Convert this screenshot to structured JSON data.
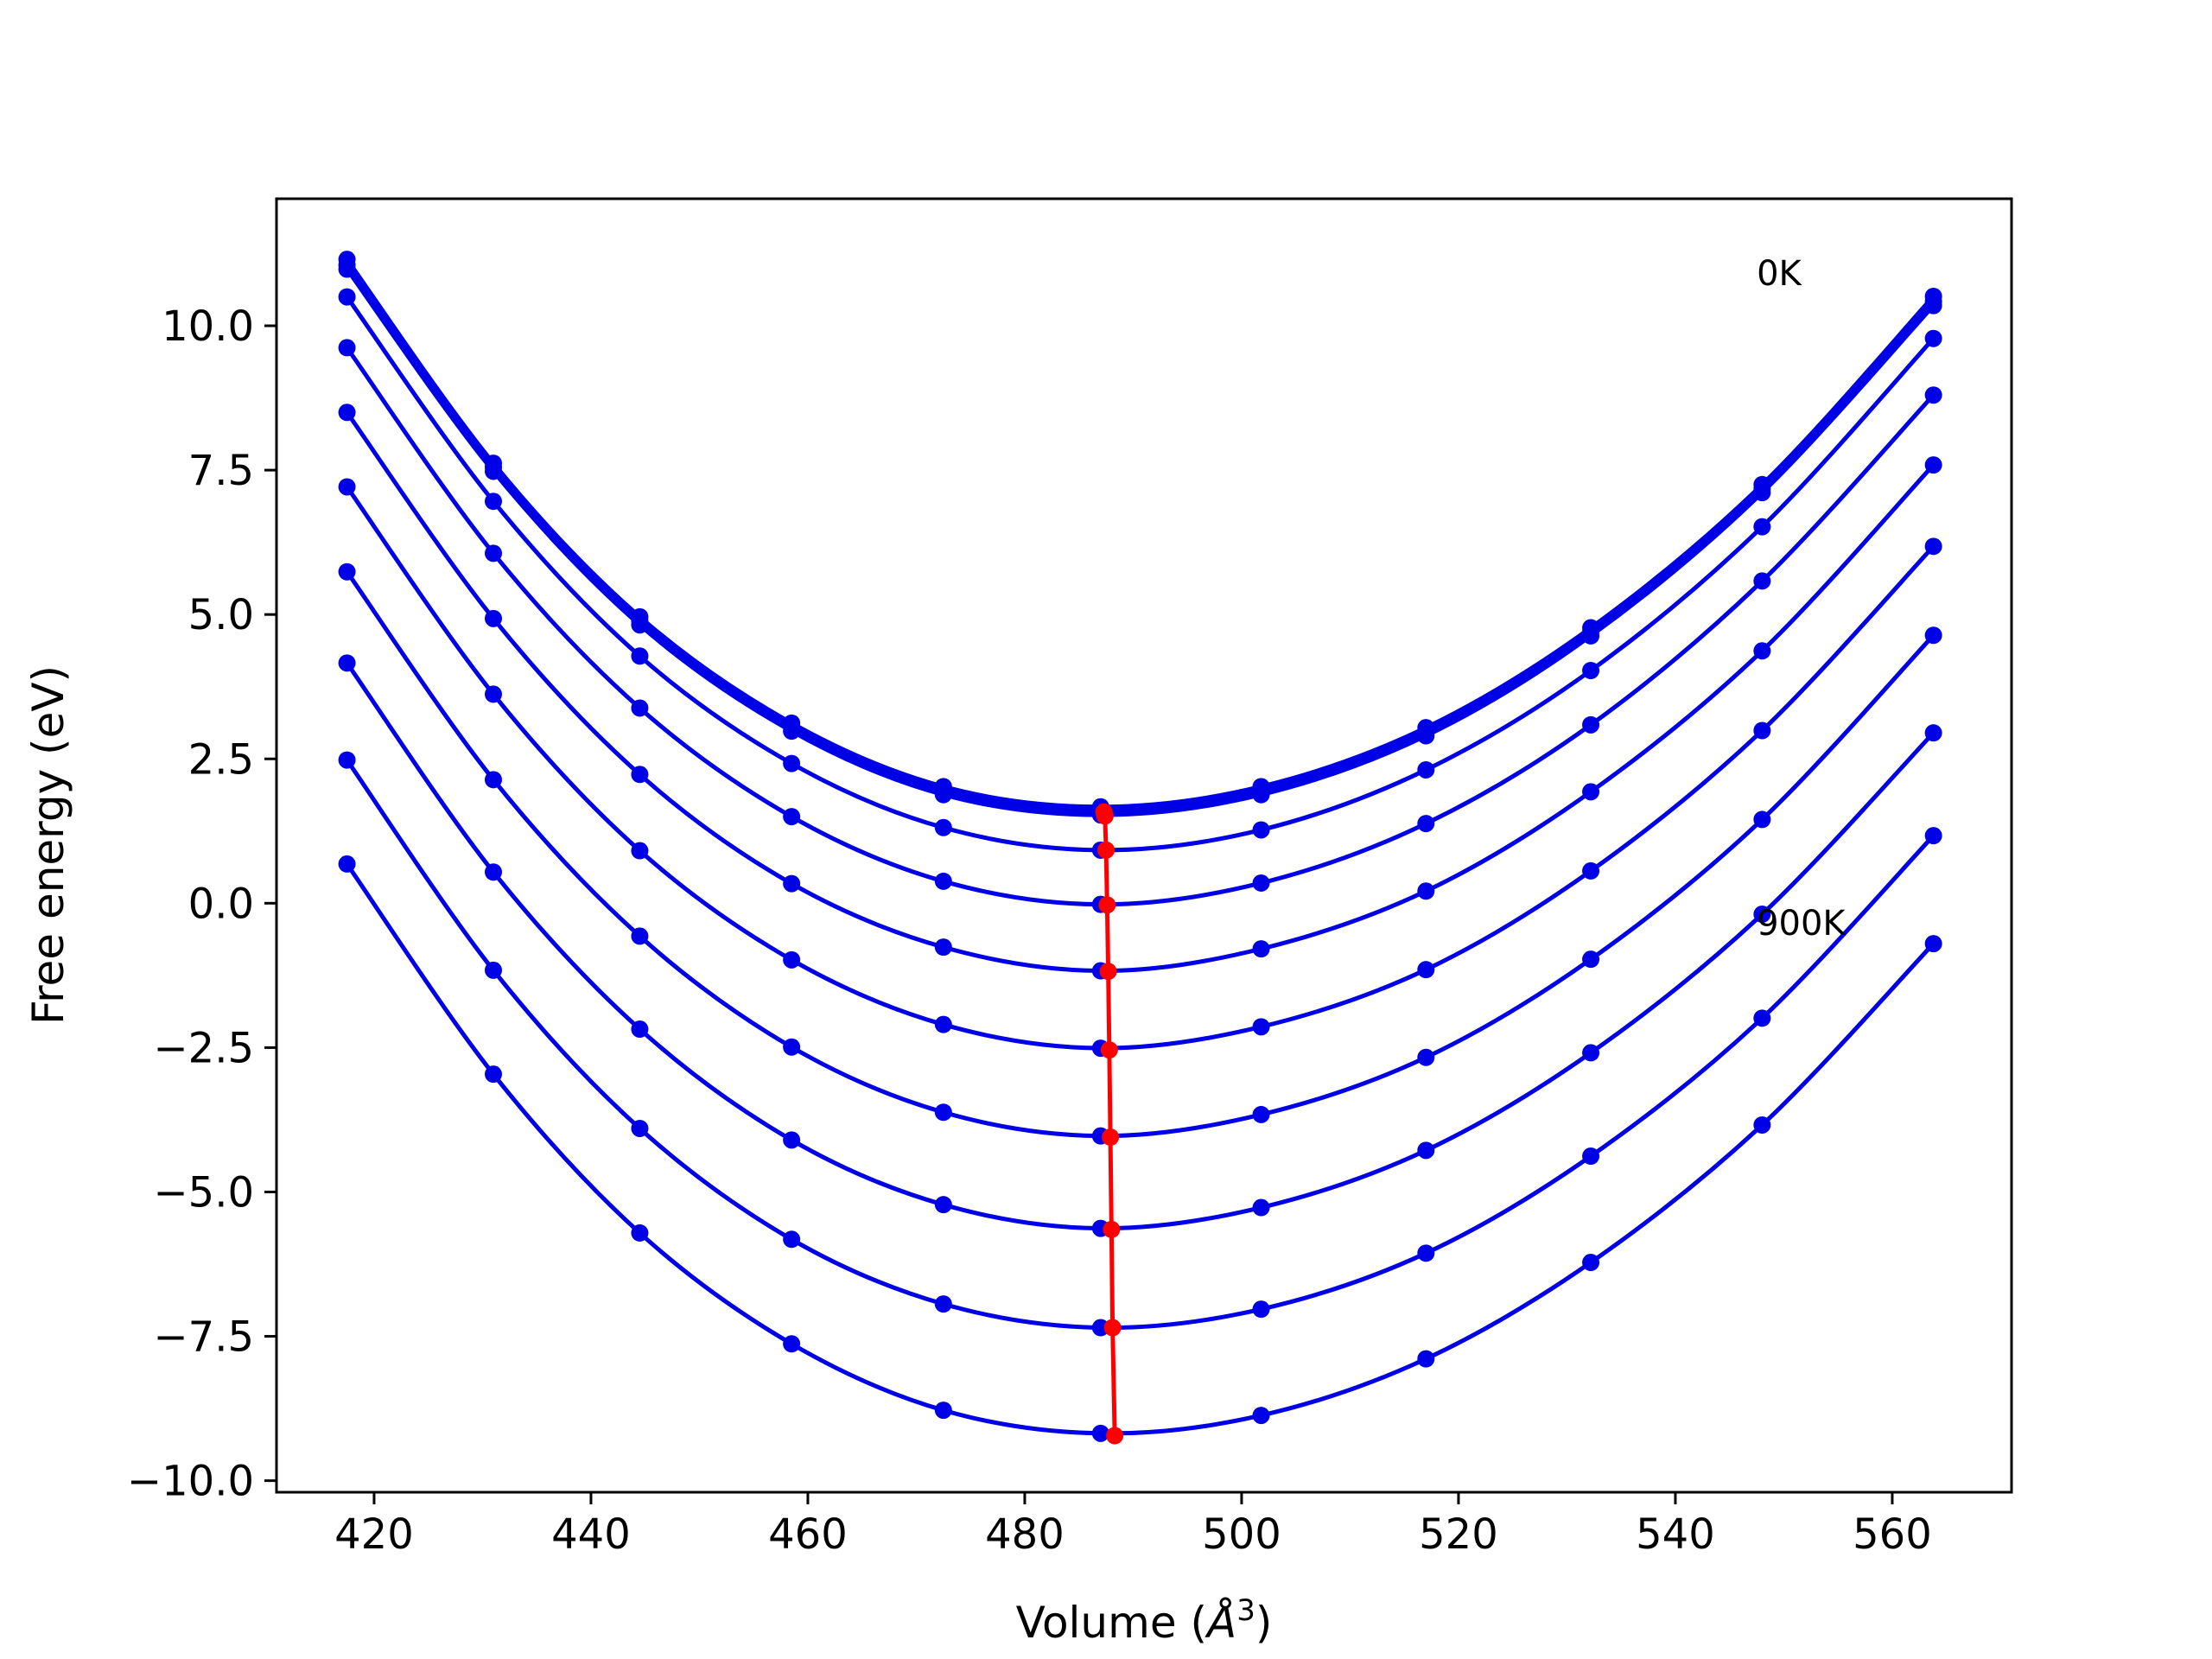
{
  "chart_data": {
    "type": "line",
    "xlabel": "Volume (",
    "xlabel_unit": "Å",
    "xlabel_exp": "3",
    "xlabel_close": ")",
    "ylabel": "Free energy (eV)",
    "xlim": [
      411,
      571
    ],
    "ylim": [
      -10.2,
      12.2
    ],
    "xticks": [
      420,
      440,
      460,
      480,
      500,
      520,
      540,
      560
    ],
    "xtick_labels": [
      "420",
      "440",
      "460",
      "480",
      "500",
      "520",
      "540",
      "560"
    ],
    "yticks": [
      -10.0,
      -7.5,
      -5.0,
      -2.5,
      0.0,
      2.5,
      5.0,
      7.5,
      10.0
    ],
    "ytick_labels": [
      "−10.0",
      "−7.5",
      "−5.0",
      "−2.5",
      "0.0",
      "2.5",
      "5.0",
      "7.5",
      "10.0"
    ],
    "grid": false,
    "annotations": [
      {
        "text": "0K",
        "x": 547.5,
        "y": 10.7
      },
      {
        "text": "900K",
        "x": 547.5,
        "y": -0.55
      }
    ],
    "x": [
      417.5,
      431.0,
      444.5,
      458.5,
      472.5,
      487.0,
      501.8,
      517.0,
      532.2,
      548.0,
      563.8
    ],
    "series_color": "#0000e6",
    "minimum_color": "#ff0000",
    "series": [
      {
        "values": [
          11.15,
          7.62,
          4.96,
          3.12,
          2.02,
          1.67,
          2.02,
          3.04,
          4.77,
          7.25,
          10.51
        ]
      },
      {
        "values": [
          11.05,
          7.55,
          4.89,
          3.05,
          1.95,
          1.6,
          1.95,
          2.97,
          4.7,
          7.18,
          10.42
        ]
      },
      {
        "values": [
          10.98,
          7.48,
          4.82,
          2.98,
          1.88,
          1.53,
          1.88,
          2.9,
          4.63,
          7.11,
          10.35
        ]
      },
      {
        "values": [
          10.5,
          6.96,
          4.28,
          2.42,
          1.31,
          0.92,
          1.27,
          2.31,
          4.03,
          6.52,
          9.78
        ]
      },
      {
        "values": [
          9.62,
          6.06,
          3.38,
          1.5,
          0.38,
          -0.02,
          0.35,
          1.38,
          3.09,
          5.58,
          8.8
        ]
      },
      {
        "values": [
          8.5,
          4.93,
          2.23,
          0.34,
          -0.76,
          -1.17,
          -0.79,
          0.21,
          1.93,
          4.37,
          7.59
        ]
      },
      {
        "values": [
          7.21,
          3.62,
          0.91,
          -0.98,
          -2.1,
          -2.51,
          -2.14,
          -1.15,
          0.56,
          2.99,
          6.18
        ]
      },
      {
        "values": [
          5.74,
          2.14,
          -0.57,
          -2.49,
          -3.62,
          -4.03,
          -3.66,
          -2.67,
          -0.97,
          1.45,
          4.64
        ]
      },
      {
        "values": [
          4.16,
          0.54,
          -2.18,
          -4.1,
          -5.22,
          -5.63,
          -5.27,
          -4.28,
          -2.59,
          -0.19,
          2.95
        ]
      },
      {
        "values": [
          2.48,
          -1.16,
          -3.9,
          -5.82,
          -6.94,
          -7.35,
          -7.03,
          -6.06,
          -4.38,
          -1.99,
          1.17
        ]
      },
      {
        "values": [
          0.68,
          -2.96,
          -5.71,
          -7.63,
          -8.78,
          -9.18,
          -8.87,
          -7.89,
          -6.22,
          -3.84,
          -0.7
        ]
      }
    ],
    "minima": [
      {
        "x": 487.3,
        "y": 1.58
      },
      {
        "x": 487.4,
        "y": 1.51
      },
      {
        "x": 487.5,
        "y": 0.92
      },
      {
        "x": 487.6,
        "y": -0.03
      },
      {
        "x": 487.7,
        "y": -1.18
      },
      {
        "x": 487.8,
        "y": -2.54
      },
      {
        "x": 487.9,
        "y": -4.05
      },
      {
        "x": 488.0,
        "y": -5.65
      },
      {
        "x": 488.1,
        "y": -7.35
      },
      {
        "x": 488.3,
        "y": -9.22
      }
    ]
  }
}
